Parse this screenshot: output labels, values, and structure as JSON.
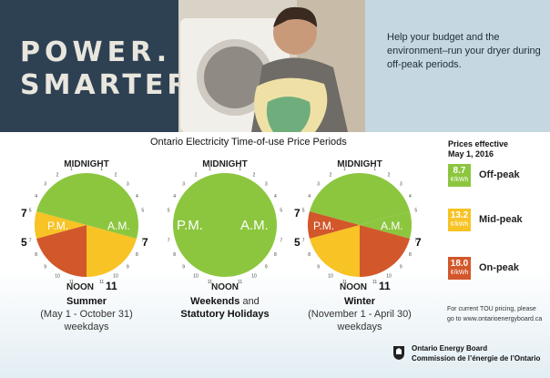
{
  "brand": {
    "line1": "POWER.",
    "line2": "SMARTER."
  },
  "tagline": "Help your budget and the environment–run your dryer during off-peak periods.",
  "chart_title": "Ontario Electricity Time-of-use Price Periods",
  "clock_labels": {
    "top": "MIDNIGHT",
    "bottom": "NOON",
    "pm": "P.M.",
    "am": "A.M."
  },
  "clocks": [
    {
      "name": "summer",
      "side_left_top": "7",
      "side_left_bottom": "5",
      "side_right": "7",
      "bottom_num": "11",
      "title": "Summer",
      "line2": "(May 1 - October 31)",
      "line3": "weekdays"
    },
    {
      "name": "weekend",
      "title_a": "Weekends",
      "title_b": " and",
      "line2": "Statutory Holidays"
    },
    {
      "name": "winter",
      "side_left_top": "7",
      "side_left_bottom": "5",
      "side_right": "7",
      "bottom_num": "11",
      "title": "Winter",
      "line2": "(November 1 - April 30)",
      "line3": "weekdays"
    }
  ],
  "prices": {
    "title_line1": "Prices effective",
    "title_line2": "May 1, 2016",
    "unit": "¢/kWh",
    "items": [
      {
        "value": "8.7",
        "label": "Off-peak",
        "color": "#8cc63f"
      },
      {
        "value": "13.2",
        "label": "Mid-peak",
        "color": "#f7c325"
      },
      {
        "value": "18.0",
        "label": "On-peak",
        "color": "#d2572b"
      }
    ]
  },
  "note": {
    "line1": "For current TOU pricing, please",
    "line2": "go to www.ontarioenergyboard.ca"
  },
  "footer": {
    "org_en": "Ontario Energy Board",
    "org_fr": "Commission de l’énergie de l’Ontario"
  },
  "colors": {
    "offpeak": "#8cc63f",
    "midpeak": "#f7c325",
    "onpeak": "#d2572b",
    "brand_bg": "#2e4153",
    "tagline_bg": "#c5d7e1"
  }
}
